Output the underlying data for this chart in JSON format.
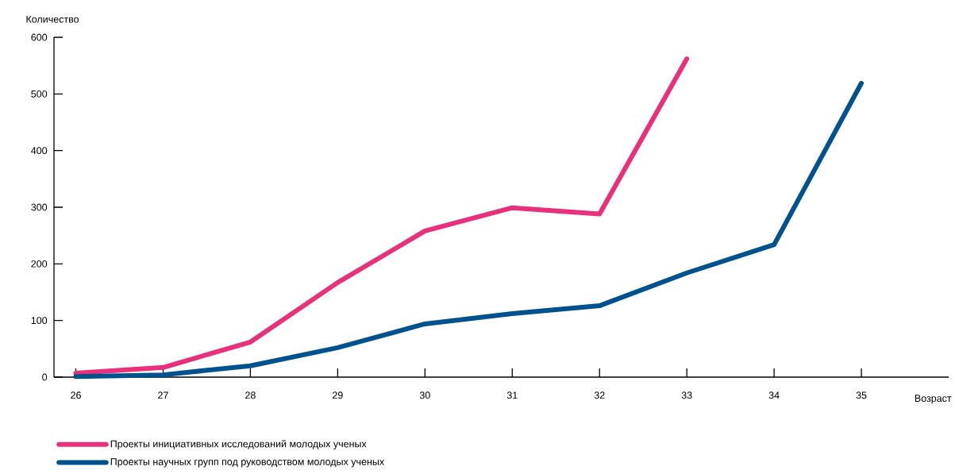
{
  "chart_data": {
    "type": "line",
    "xlabel": "Возраст",
    "ylabel": "Количество",
    "x": [
      26,
      27,
      28,
      29,
      30,
      31,
      32,
      33,
      34,
      35
    ],
    "series": [
      {
        "name": "Проекты инициативных исследований молодых ученых",
        "color": "#e8317a",
        "values": [
          7,
          17,
          62,
          167,
          258,
          299,
          288,
          562,
          null,
          null
        ]
      },
      {
        "name": "Проекты научных групп под руководством молодых ученых",
        "color": "#00528f",
        "values": [
          1,
          4,
          20,
          52,
          94,
          112,
          126,
          184,
          234,
          519
        ]
      }
    ],
    "xlim": [
      25.75,
      36
    ],
    "ylim": [
      0,
      600
    ],
    "xticks": [
      26,
      27,
      28,
      29,
      30,
      31,
      32,
      33,
      34,
      35
    ],
    "yticks": [
      0,
      100,
      200,
      300,
      400,
      500,
      600
    ],
    "grid": false,
    "legend": "bottom left",
    "marker": "none",
    "line_style": "solid"
  }
}
